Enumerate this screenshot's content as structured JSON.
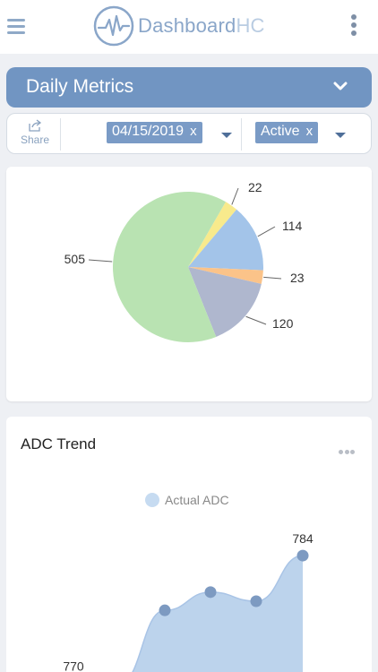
{
  "header": {
    "logo_main": "Dashboard",
    "logo_suffix": "HC",
    "menu_icon": "hamburger-menu-icon",
    "more_icon": "vertical-dots-icon"
  },
  "metrics_selector": {
    "title": "Daily Metrics",
    "icon": "chevron-down-icon"
  },
  "filters": {
    "share_label": "Share",
    "share_icon": "share-icon",
    "chips": [
      {
        "label": "04/15/2019",
        "remove": "x"
      },
      {
        "label": "Active",
        "remove": "x"
      }
    ]
  },
  "colors": {
    "accent": "#7195c2",
    "chip": "#7a9bc6",
    "area_fill": "#bcd3ec",
    "point": "#7d9ac1"
  },
  "chart_data": [
    {
      "type": "pie",
      "values": [
        22,
        114,
        23,
        120,
        505
      ],
      "labels": [
        "22",
        "114",
        "23",
        "120",
        "505"
      ],
      "colors": [
        "#f8ea8c",
        "#a3c4e9",
        "#fbc389",
        "#afb7ce",
        "#b9e3b2"
      ]
    },
    {
      "type": "area",
      "title": "ADC Trend",
      "legend": [
        "Actual ADC"
      ],
      "series": [
        {
          "name": "Actual ADC",
          "values": [
            770,
            770,
            778,
            780,
            779,
            784
          ]
        }
      ],
      "data_labels": [
        {
          "index": 0,
          "text": "770"
        },
        {
          "index": 5,
          "text": "784"
        }
      ],
      "ylim": [
        768,
        790
      ]
    }
  ]
}
